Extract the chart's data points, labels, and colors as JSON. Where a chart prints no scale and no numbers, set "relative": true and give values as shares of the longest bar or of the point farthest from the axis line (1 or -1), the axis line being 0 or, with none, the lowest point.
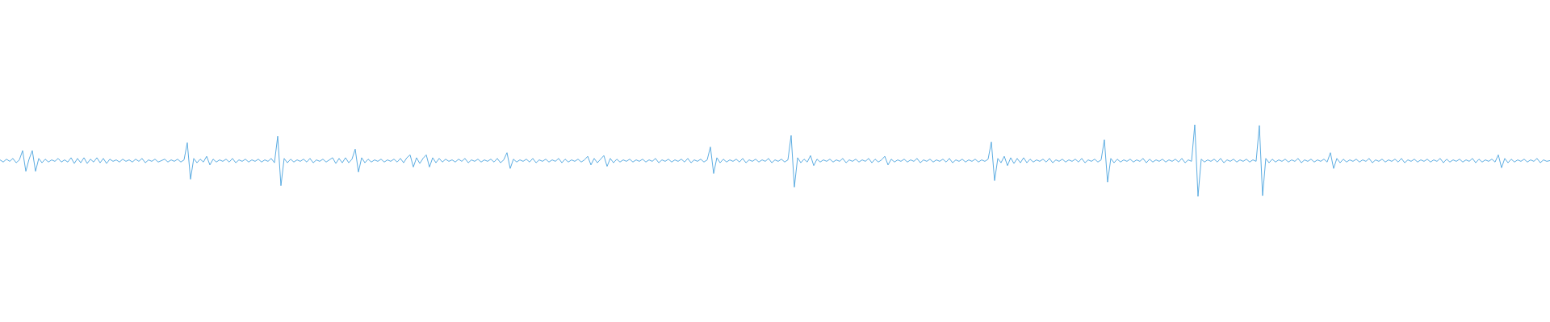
{
  "chart_data": {
    "type": "line",
    "relative": true,
    "color": "#5dade2",
    "categories": [
      null,
      null,
      null,
      null,
      null,
      null,
      null,
      null,
      null,
      null,
      null,
      null,
      null,
      null,
      null,
      null,
      null,
      null,
      null,
      null,
      null,
      null,
      null,
      null,
      null,
      null,
      null,
      null,
      null,
      null,
      null,
      null,
      null,
      null,
      null,
      null,
      null,
      null,
      null,
      null,
      null,
      null,
      null,
      null,
      null,
      null,
      null,
      null,
      null,
      null,
      null,
      null,
      null,
      null,
      null,
      null,
      null,
      null,
      null,
      null,
      null,
      null,
      null,
      null,
      null,
      null,
      null,
      null,
      null,
      null,
      null,
      null,
      null,
      null,
      null,
      null,
      null,
      null,
      null,
      null,
      null,
      null,
      null,
      null,
      null,
      null,
      null,
      null,
      null,
      null,
      null,
      null,
      null,
      null,
      null,
      null,
      null,
      null,
      null,
      null,
      null,
      null,
      null,
      null,
      null,
      null,
      null,
      null,
      null,
      null,
      null,
      null,
      null,
      null,
      null,
      null,
      null,
      null,
      null,
      null,
      null,
      null,
      null,
      null,
      null,
      null,
      null,
      null,
      null,
      null,
      null,
      null,
      null,
      null,
      null,
      null,
      null,
      null,
      null,
      null,
      null,
      null,
      null,
      null,
      null,
      null,
      null,
      null,
      null,
      null,
      null,
      null,
      null,
      null,
      null,
      null,
      null,
      null,
      null,
      null,
      null,
      null,
      null,
      null,
      null,
      null,
      null,
      null,
      null,
      null,
      null,
      null,
      null,
      null,
      null,
      null,
      null,
      null,
      null,
      null,
      null,
      null,
      null,
      null,
      null,
      null,
      null,
      null,
      null,
      null,
      null,
      null,
      null,
      null,
      null,
      null,
      null,
      null,
      null,
      null,
      null,
      null,
      null,
      null,
      null,
      null,
      null,
      null,
      null,
      null,
      null,
      null,
      null,
      null,
      null,
      null,
      null,
      null,
      null,
      null,
      null,
      null,
      null,
      null,
      null,
      null,
      null,
      null,
      null,
      null,
      null,
      null,
      null,
      null,
      null,
      null,
      null,
      null,
      null,
      null,
      null,
      null,
      null,
      null,
      null,
      null,
      null,
      null,
      null,
      null,
      null,
      null,
      null,
      null,
      null,
      null,
      null,
      null,
      null,
      null,
      null,
      null,
      null,
      null,
      null,
      null,
      null,
      null,
      null,
      null,
      null,
      null,
      null,
      null,
      null,
      null,
      null,
      null,
      null,
      null,
      null,
      null,
      null,
      null,
      null,
      null,
      null,
      null,
      null,
      null,
      null,
      null,
      null,
      null,
      null,
      null,
      null,
      null,
      null,
      null,
      null,
      null,
      null,
      null,
      null,
      null,
      null,
      null,
      null,
      null,
      null,
      null,
      null,
      null,
      null,
      null,
      null,
      null,
      null,
      null,
      null,
      null,
      null,
      null,
      null,
      null,
      null,
      null,
      null,
      null,
      null,
      null,
      null,
      null,
      null,
      null,
      null,
      null,
      null,
      null,
      null,
      null,
      null,
      null,
      null,
      null,
      null,
      null,
      null,
      null,
      null,
      null,
      null,
      null,
      null,
      null,
      null,
      null,
      null,
      null,
      null,
      null,
      null,
      null,
      null,
      null,
      null,
      null,
      null,
      null,
      null,
      null,
      null,
      null,
      null,
      null,
      null,
      null,
      null,
      null,
      null,
      null,
      null,
      null,
      null,
      null,
      null,
      null,
      null,
      null,
      null,
      null,
      null,
      null,
      null,
      null,
      null,
      null,
      null,
      null,
      null,
      null,
      null,
      null,
      null,
      null,
      null,
      null,
      null,
      null,
      null,
      null,
      null,
      null,
      null,
      null,
      null,
      null,
      null,
      null,
      null,
      null,
      null,
      null,
      null,
      null,
      null,
      null,
      null,
      null,
      null,
      null,
      null,
      null,
      null,
      null,
      null,
      null,
      null,
      null,
      null,
      null,
      null,
      null,
      null,
      null,
      null,
      null,
      null,
      null,
      null,
      null,
      null,
      null,
      null,
      null,
      null,
      null,
      null,
      null,
      null,
      null,
      null,
      null,
      null,
      null,
      null,
      null,
      null,
      null,
      null,
      null,
      null,
      null,
      null,
      null,
      null,
      null,
      null,
      null,
      null
    ],
    "values": [
      0.51,
      0.48,
      0.52,
      0.49,
      0.53,
      0.47,
      0.51,
      0.64,
      0.35,
      0.52,
      0.64,
      0.35,
      0.53,
      0.47,
      0.52,
      0.48,
      0.51,
      0.49,
      0.53,
      0.48,
      0.51,
      0.48,
      0.54,
      0.46,
      0.53,
      0.47,
      0.54,
      0.46,
      0.52,
      0.48,
      0.54,
      0.47,
      0.53,
      0.46,
      0.52,
      0.49,
      0.51,
      0.48,
      0.52,
      0.49,
      0.51,
      0.48,
      0.52,
      0.49,
      0.53,
      0.47,
      0.51,
      0.49,
      0.52,
      0.48,
      0.5,
      0.52,
      0.48,
      0.51,
      0.49,
      0.52,
      0.48,
      0.51,
      0.75,
      0.24,
      0.53,
      0.47,
      0.52,
      0.48,
      0.56,
      0.44,
      0.52,
      0.48,
      0.51,
      0.49,
      0.52,
      0.48,
      0.53,
      0.47,
      0.51,
      0.49,
      0.52,
      0.48,
      0.51,
      0.49,
      0.52,
      0.48,
      0.51,
      0.49,
      0.53,
      0.47,
      0.84,
      0.15,
      0.53,
      0.47,
      0.52,
      0.48,
      0.51,
      0.49,
      0.52,
      0.48,
      0.53,
      0.47,
      0.51,
      0.49,
      0.52,
      0.48,
      0.51,
      0.54,
      0.46,
      0.53,
      0.47,
      0.54,
      0.47,
      0.52,
      0.66,
      0.34,
      0.54,
      0.47,
      0.52,
      0.48,
      0.51,
      0.49,
      0.52,
      0.48,
      0.51,
      0.49,
      0.52,
      0.48,
      0.53,
      0.47,
      0.54,
      0.58,
      0.41,
      0.54,
      0.46,
      0.53,
      0.58,
      0.41,
      0.54,
      0.47,
      0.53,
      0.48,
      0.52,
      0.49,
      0.51,
      0.48,
      0.52,
      0.49,
      0.53,
      0.47,
      0.51,
      0.49,
      0.52,
      0.48,
      0.51,
      0.49,
      0.52,
      0.48,
      0.53,
      0.47,
      0.51,
      0.61,
      0.39,
      0.52,
      0.48,
      0.51,
      0.49,
      0.52,
      0.48,
      0.53,
      0.47,
      0.51,
      0.49,
      0.52,
      0.48,
      0.51,
      0.49,
      0.53,
      0.47,
      0.52,
      0.48,
      0.51,
      0.49,
      0.52,
      0.48,
      0.51,
      0.56,
      0.44,
      0.53,
      0.47,
      0.52,
      0.57,
      0.42,
      0.53,
      0.47,
      0.52,
      0.48,
      0.51,
      0.49,
      0.52,
      0.48,
      0.51,
      0.49,
      0.52,
      0.48,
      0.51,
      0.49,
      0.53,
      0.47,
      0.51,
      0.49,
      0.52,
      0.48,
      0.51,
      0.49,
      0.52,
      0.48,
      0.53,
      0.47,
      0.51,
      0.49,
      0.52,
      0.48,
      0.51,
      0.69,
      0.32,
      0.54,
      0.47,
      0.52,
      0.48,
      0.51,
      0.49,
      0.52,
      0.48,
      0.53,
      0.47,
      0.51,
      0.49,
      0.52,
      0.48,
      0.51,
      0.49,
      0.53,
      0.47,
      0.51,
      0.49,
      0.52,
      0.48,
      0.51,
      0.85,
      0.13,
      0.54,
      0.47,
      0.52,
      0.48,
      0.57,
      0.43,
      0.52,
      0.48,
      0.51,
      0.49,
      0.52,
      0.48,
      0.51,
      0.49,
      0.53,
      0.47,
      0.51,
      0.49,
      0.52,
      0.48,
      0.51,
      0.49,
      0.53,
      0.47,
      0.52,
      0.48,
      0.51,
      0.56,
      0.44,
      0.52,
      0.48,
      0.51,
      0.49,
      0.52,
      0.48,
      0.51,
      0.49,
      0.53,
      0.47,
      0.51,
      0.49,
      0.52,
      0.48,
      0.51,
      0.49,
      0.52,
      0.48,
      0.53,
      0.47,
      0.51,
      0.49,
      0.52,
      0.48,
      0.51,
      0.49,
      0.52,
      0.48,
      0.51,
      0.49,
      0.52,
      0.76,
      0.22,
      0.53,
      0.47,
      0.56,
      0.43,
      0.54,
      0.46,
      0.53,
      0.47,
      0.54,
      0.47,
      0.52,
      0.48,
      0.51,
      0.49,
      0.52,
      0.48,
      0.53,
      0.47,
      0.51,
      0.49,
      0.52,
      0.48,
      0.51,
      0.49,
      0.52,
      0.48,
      0.53,
      0.47,
      0.51,
      0.49,
      0.52,
      0.48,
      0.51,
      0.79,
      0.2,
      0.53,
      0.47,
      0.52,
      0.48,
      0.51,
      0.49,
      0.52,
      0.48,
      0.51,
      0.49,
      0.53,
      0.47,
      0.52,
      0.48,
      0.51,
      0.49,
      0.52,
      0.48,
      0.51,
      0.49,
      0.52,
      0.48,
      0.53,
      0.47,
      0.51,
      0.49,
      1.0,
      0,
      0.52,
      0.48,
      0.51,
      0.49,
      0.52,
      0.48,
      0.53,
      0.47,
      0.51,
      0.49,
      0.52,
      0.48,
      0.51,
      0.49,
      0.52,
      0.48,
      0.51,
      0.49,
      0.99,
      0.01,
      0.53,
      0.47,
      0.52,
      0.48,
      0.51,
      0.49,
      0.52,
      0.48,
      0.51,
      0.49,
      0.53,
      0.47,
      0.51,
      0.49,
      0.52,
      0.48,
      0.51,
      0.49,
      0.52,
      0.48,
      0.61,
      0.39,
      0.53,
      0.47,
      0.52,
      0.48,
      0.51,
      0.49,
      0.52,
      0.48,
      0.51,
      0.49,
      0.53,
      0.47,
      0.51,
      0.49,
      0.52,
      0.48,
      0.51,
      0.49,
      0.52,
      0.48,
      0.53,
      0.47,
      0.51,
      0.49,
      0.52,
      0.48,
      0.51,
      0.49,
      0.52,
      0.48,
      0.51,
      0.49,
      0.53,
      0.47,
      0.52,
      0.48,
      0.51,
      0.49,
      0.52,
      0.48,
      0.51,
      0.49,
      0.53,
      0.47,
      0.52,
      0.48,
      0.51,
      0.49,
      0.52,
      0.48,
      0.58,
      0.4,
      0.53,
      0.47,
      0.52,
      0.48,
      0.51,
      0.49,
      0.52,
      0.48,
      0.51,
      0.49,
      0.53,
      0.47,
      0.51,
      0.49,
      0.5
    ]
  }
}
